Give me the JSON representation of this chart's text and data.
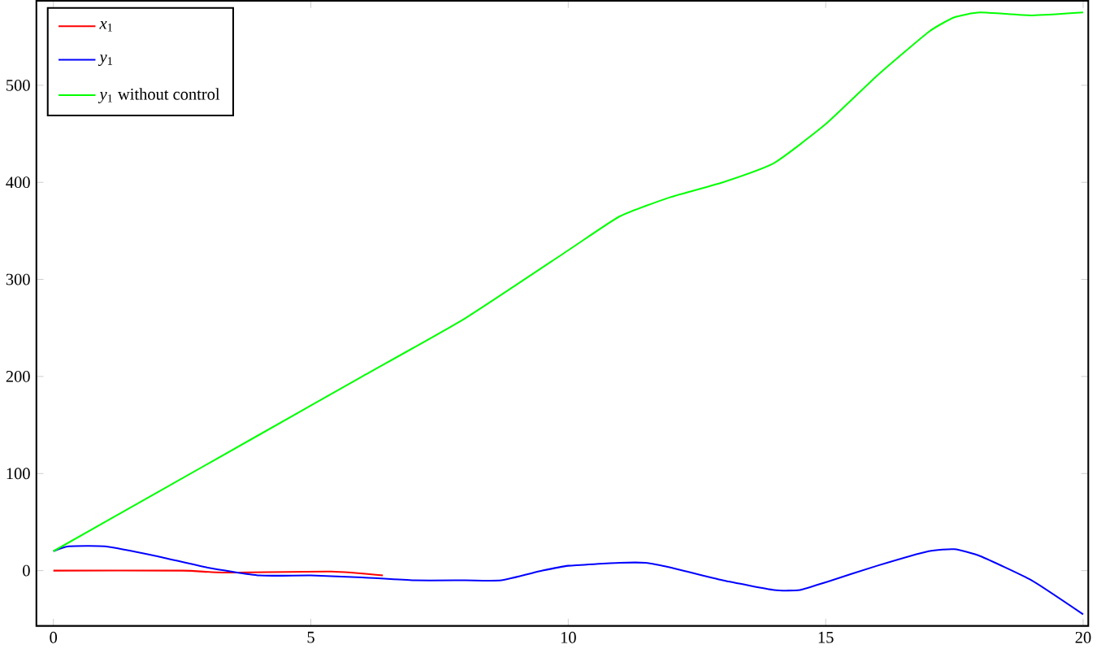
{
  "chart_data": {
    "type": "line",
    "xlim": [
      -0.33,
      20.1
    ],
    "ylim": [
      -57,
      587
    ],
    "xticks": [
      0,
      5,
      10,
      15,
      20
    ],
    "yticks": [
      0,
      100,
      200,
      300,
      400,
      500
    ],
    "grid": false,
    "legend": "top left",
    "series": [
      {
        "name": "*x*$_{1}$",
        "color": "#ff0000",
        "x": [
          0,
          2.5,
          3.3,
          5.4,
          6.4
        ],
        "values": [
          0,
          0,
          -2,
          -1,
          -5
        ]
      },
      {
        "name": "*y*$_{1}$",
        "color": "#0000ff",
        "x": [
          0,
          0.3,
          1,
          2,
          3,
          4,
          5,
          6,
          7,
          8,
          8.7,
          9.5,
          10,
          11,
          11.5,
          12,
          13,
          14,
          14.5,
          15,
          16,
          17,
          17.5,
          18,
          19,
          20
        ],
        "values": [
          20,
          25,
          25,
          15,
          3,
          -5,
          -5,
          -7,
          -10,
          -10,
          -10,
          0,
          5,
          8,
          8,
          3,
          -10,
          -20,
          -20,
          -12,
          5,
          20,
          22,
          15,
          -10,
          -45
        ]
      },
      {
        "name": "*y*$_{1}$ without   control",
        "color": "#00ff00",
        "x": [
          0,
          2,
          4,
          6,
          8,
          10,
          11,
          12,
          13,
          14,
          15,
          16,
          17,
          17.5,
          18,
          19,
          20
        ],
        "values": [
          20,
          80,
          140,
          200,
          260,
          330,
          365,
          385,
          400,
          420,
          460,
          510,
          555,
          570,
          575,
          572,
          575
        ]
      }
    ]
  }
}
